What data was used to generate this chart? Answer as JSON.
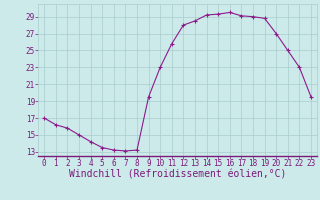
{
  "x": [
    0,
    1,
    2,
    3,
    4,
    5,
    6,
    7,
    8,
    9,
    10,
    11,
    12,
    13,
    14,
    15,
    16,
    17,
    18,
    19,
    20,
    21,
    22,
    23
  ],
  "y": [
    17,
    16.2,
    15.8,
    15.0,
    14.2,
    13.5,
    13.2,
    13.1,
    13.2,
    19.5,
    23,
    25.8,
    28,
    28.5,
    29.2,
    29.3,
    29.5,
    29.1,
    29.0,
    28.8,
    27.0,
    25.0,
    23.0,
    19.5
  ],
  "line_color": "#8b1a8b",
  "marker": "+",
  "bg_color": "#cdeaea",
  "grid_color": "#aacccc",
  "xlabel": "Windchill (Refroidissement éolien,°C)",
  "xlim": [
    -0.5,
    23.5
  ],
  "ylim": [
    12.5,
    30.5
  ],
  "yticks": [
    13,
    15,
    17,
    19,
    21,
    23,
    25,
    27,
    29
  ],
  "xticks": [
    0,
    1,
    2,
    3,
    4,
    5,
    6,
    7,
    8,
    9,
    10,
    11,
    12,
    13,
    14,
    15,
    16,
    17,
    18,
    19,
    20,
    21,
    22,
    23
  ],
  "font_color": "#7a1a7a",
  "tick_fontsize": 5.5,
  "label_fontsize": 7.0,
  "marker_size": 3,
  "linewidth": 0.8,
  "spine_color": "#7a1a7a"
}
